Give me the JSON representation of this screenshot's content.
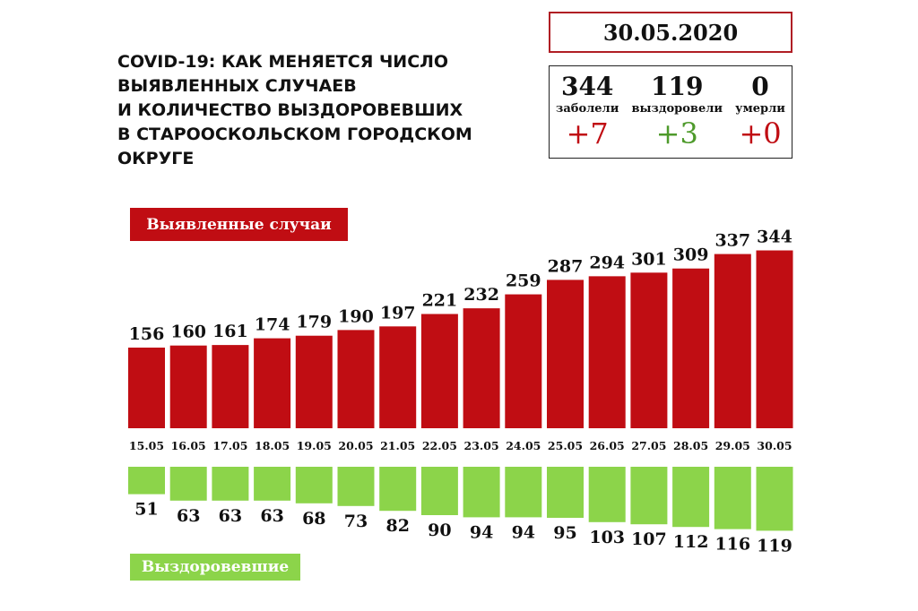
{
  "title_lines": [
    "COVID-19: КАК МЕНЯЕТСЯ ЧИСЛО",
    "ВЫЯВЛЕННЫХ СЛУЧАЕВ",
    "И КОЛИЧЕСТВО ВЫЗДОРОВЕВШИХ",
    "В СТАРООСКОЛЬСКОМ ГОРОДСКОМ",
    "ОКРУГЕ"
  ],
  "date": "30.05.2020",
  "stats": {
    "sick": {
      "value": "344",
      "label": "заболели",
      "delta": "+7",
      "color": "#c00d13"
    },
    "recovered": {
      "value": "119",
      "label": "выздоровели",
      "delta": "+3",
      "color": "#4e9a2b"
    },
    "died": {
      "value": "0",
      "label": "умерли",
      "delta": "+0",
      "color": "#c00d13"
    }
  },
  "colors": {
    "cases": "#c00d13",
    "recovered": "#8cd44a"
  },
  "chart_data": {
    "type": "bar",
    "categories": [
      "15.05",
      "16.05",
      "17.05",
      "18.05",
      "19.05",
      "20.05",
      "21.05",
      "22.05",
      "23.05",
      "24.05",
      "25.05",
      "26.05",
      "27.05",
      "28.05",
      "29.05",
      "30.05"
    ],
    "series": [
      {
        "name": "Выявленные случаи",
        "values": [
          156,
          160,
          161,
          174,
          179,
          190,
          197,
          221,
          232,
          259,
          287,
          294,
          301,
          309,
          337,
          344
        ]
      },
      {
        "name": "Выздоровевшие",
        "values": [
          51,
          63,
          63,
          63,
          68,
          73,
          82,
          90,
          94,
          94,
          95,
          103,
          107,
          112,
          116,
          119
        ]
      }
    ]
  }
}
